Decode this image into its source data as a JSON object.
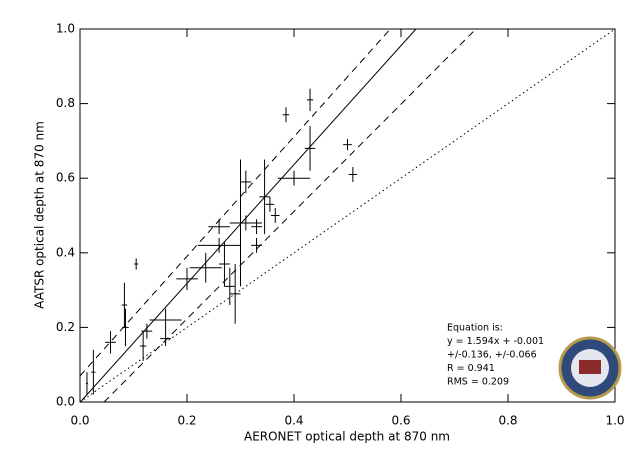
{
  "chart_data": {
    "type": "scatter",
    "xlabel": "AERONET optical depth at 870 nm",
    "ylabel": "AATSR optical depth at 870 nm",
    "xlim": [
      0,
      1
    ],
    "ylim": [
      0,
      1
    ],
    "xticks": [
      {
        "value": 0,
        "label": "0.0"
      },
      0.2,
      0.4,
      0.6,
      0.8,
      {
        "value": 1,
        "label": "1.0"
      }
    ],
    "yticks": [
      {
        "value": 0,
        "label": "0.0"
      },
      0.2,
      0.4,
      0.6,
      0.8,
      {
        "value": 1,
        "label": "1.0"
      }
    ],
    "color": "#000000",
    "series": [
      {
        "x": [
          0.013,
          0.025,
          0.057,
          0.083,
          0.085,
          0.105,
          0.118,
          0.125,
          0.16,
          0.16,
          0.2,
          0.235,
          0.26,
          0.26,
          0.27,
          0.3,
          0.31,
          0.31,
          0.33,
          0.33,
          0.345,
          0.355,
          0.365,
          0.28,
          0.29,
          0.4,
          0.43,
          0.43,
          0.385,
          0.5,
          0.51
        ],
        "y": [
          0.05,
          0.08,
          0.16,
          0.26,
          0.2,
          0.37,
          0.15,
          0.19,
          0.22,
          0.17,
          0.33,
          0.36,
          0.47,
          0.42,
          0.37,
          0.48,
          0.59,
          0.48,
          0.47,
          0.42,
          0.55,
          0.53,
          0.5,
          0.31,
          0.29,
          0.6,
          0.68,
          0.81,
          0.77,
          0.69,
          0.61
        ],
        "xerr": [
          0.002,
          0.004,
          0.01,
          0.005,
          0.006,
          0.004,
          0.006,
          0.01,
          0.03,
          0.01,
          0.02,
          0.03,
          0.02,
          0.04,
          0.01,
          0.02,
          0.01,
          0.03,
          0.01,
          0.01,
          0.01,
          0.008,
          0.008,
          0.01,
          0.01,
          0.03,
          0.01,
          0.006,
          0.006,
          0.008,
          0.008
        ],
        "yerr": [
          0.03,
          0.06,
          0.03,
          0.06,
          0.05,
          0.015,
          0.04,
          0.02,
          0.03,
          0.02,
          0.03,
          0.04,
          0.02,
          0.02,
          0.06,
          0.17,
          0.03,
          0.02,
          0.02,
          0.02,
          0.1,
          0.02,
          0.02,
          0.05,
          0.08,
          0.02,
          0.06,
          0.03,
          0.02,
          0.015,
          0.02
        ]
      }
    ],
    "lines": [
      {
        "style": "solid",
        "x": [
          0,
          0.628
        ],
        "y": [
          -0.001,
          1
        ]
      },
      {
        "style": "dashed",
        "x": [
          0,
          0.58
        ],
        "y": [
          0.07,
          1
        ]
      },
      {
        "style": "dashed",
        "x": [
          0.045,
          0.74
        ],
        "y": [
          0,
          1
        ]
      },
      {
        "style": "dotted",
        "x": [
          0,
          1
        ],
        "y": [
          0,
          1
        ]
      }
    ],
    "annotation": [
      "Equation is:",
      "y = 1.594x + -0.001",
      "+/-0.136, +/-0.066",
      "R = 0.941",
      "RMS = 0.209"
    ]
  }
}
